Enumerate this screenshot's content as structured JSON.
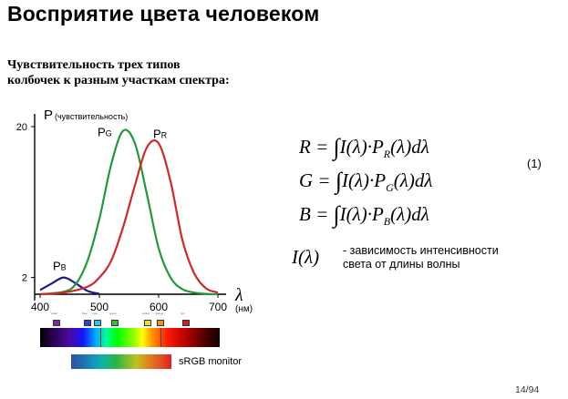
{
  "slide": {
    "title": "Восприятие цвета человеком",
    "subtitle_line1": "Чувствительность трех типов",
    "subtitle_line2": "колбочек к разным участкам спектра:",
    "page_number": "14/94"
  },
  "formulas": {
    "rows": [
      {
        "lhs": "R",
        "sub": "R"
      },
      {
        "lhs": "G",
        "sub": "G"
      },
      {
        "lhs": "B",
        "sub": "B"
      }
    ],
    "equation_number": "(1)",
    "intensity_symbol": "I(λ)",
    "intensity_desc_line1": "-  зависимость интенсивности",
    "intensity_desc_line2": "света от длины волны"
  },
  "spectrum": {
    "swatches": [
      {
        "label": "violet",
        "color": "#7a2aa0"
      },
      {
        "label": "blue",
        "color": "#3040d0"
      },
      {
        "label": "cyan",
        "color": "#30c0e0"
      },
      {
        "label": "green",
        "color": "#30c030"
      },
      {
        "label": "yellow",
        "color": "#f0e020"
      },
      {
        "label": "orange",
        "color": "#f09020"
      },
      {
        "label": "red",
        "color": "#d02020"
      }
    ],
    "srgb_label": "sRGB monitor"
  },
  "chart_data": {
    "type": "line",
    "ylabel": "P",
    "ylabel_note": "(чувствительность)",
    "xlabel": "λ",
    "xunit": "(нм)",
    "xlim": [
      400,
      700
    ],
    "ylim": [
      0,
      20
    ],
    "x_ticks": [
      400,
      500,
      600,
      700
    ],
    "y_ticks": [
      2,
      20
    ],
    "grid": false,
    "series": [
      {
        "name": "PB",
        "label_main": "P",
        "label_sub": "B",
        "color": "#1a1a8a",
        "x": [
          400,
          420,
          440,
          460,
          480,
          500
        ],
        "y": [
          0.5,
          1.3,
          2.0,
          1.3,
          0.4,
          0.05
        ]
      },
      {
        "name": "PG",
        "label_main": "P",
        "label_sub": "G",
        "color": "#1f9a3a",
        "x": [
          400,
          440,
          460,
          480,
          500,
          520,
          540,
          560,
          580,
          600,
          620,
          640,
          660,
          680,
          700
        ],
        "y": [
          0,
          0.3,
          1.2,
          4.0,
          9.0,
          15.5,
          19.5,
          18.0,
          12.0,
          5.5,
          2.0,
          0.6,
          0.2,
          0.05,
          0
        ]
      },
      {
        "name": "PR",
        "label_main": "P",
        "label_sub": "R",
        "color": "#d22828",
        "x": [
          400,
          440,
          480,
          500,
          520,
          540,
          560,
          580,
          600,
          620,
          640,
          660,
          680,
          700
        ],
        "y": [
          0,
          0.2,
          0.9,
          2.0,
          4.0,
          8.0,
          13.0,
          17.5,
          18.0,
          13.5,
          6.5,
          2.5,
          0.7,
          0.2
        ]
      }
    ]
  }
}
